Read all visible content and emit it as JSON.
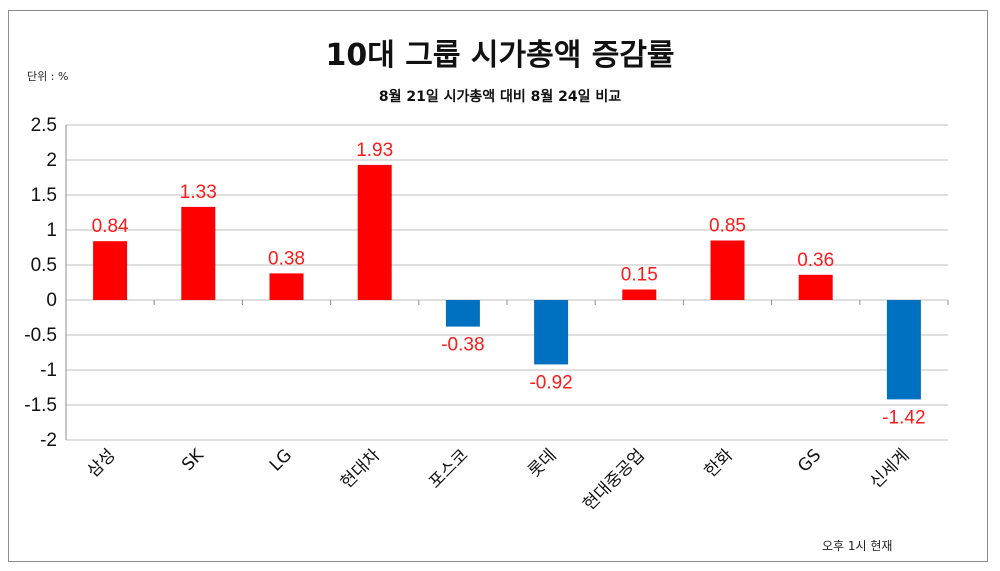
{
  "chart_data": {
    "type": "bar",
    "title": "10대 그룹 시가총액 증감률",
    "subtitle": "8월 21일 시가총액 대비 8월 24일 비교",
    "unit_label": "단위 : %",
    "footnote": "오후 1시 현재",
    "categories": [
      "삼성",
      "SK",
      "LG",
      "현대차",
      "포스코",
      "롯데",
      "현대중공업",
      "한화",
      "GS",
      "신세계"
    ],
    "values": [
      0.84,
      1.33,
      0.38,
      1.93,
      -0.38,
      -0.92,
      0.15,
      0.85,
      0.36,
      -1.42
    ],
    "data_labels": [
      "0.84",
      "1.33",
      "0.38",
      "1.93",
      "-0.38",
      "-0.92",
      "0.15",
      "0.85",
      "0.36",
      "-1.42"
    ],
    "y_ticks": [
      "2.5",
      "2",
      "1.5",
      "1",
      "0.5",
      "0",
      "-0.5",
      "-1",
      "-1.5",
      "-2"
    ],
    "ylim": [
      -2,
      2.5
    ],
    "grid": true,
    "colors": {
      "positive": "#ff0000",
      "negative": "#0070c0",
      "label": "#ff1a1a",
      "grid": "#bfbfbf"
    }
  }
}
